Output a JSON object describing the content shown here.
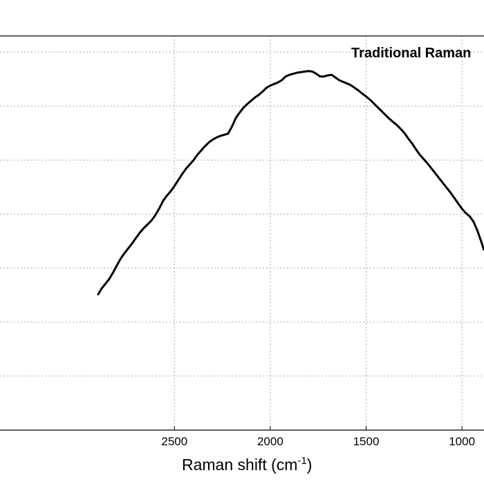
{
  "chart_data": {
    "type": "line",
    "title": "Traditional Raman",
    "xlabel": "Raman shift (cm",
    "xlabel_superscript": "-1",
    "xlabel_suffix": ")",
    "ylabel": "",
    "x_reversed": true,
    "xlim": [
      3410,
      885
    ],
    "ylim": [
      0,
      7.3
    ],
    "grid": true,
    "x_ticks": [
      2500,
      2000,
      1500,
      1000
    ],
    "x_tick_labels": [
      "2500",
      "2000",
      "1500",
      "1000"
    ],
    "y_grid_values": [
      1,
      2,
      3,
      4,
      5,
      6,
      7
    ],
    "series": [
      {
        "color": "#000000",
        "x": [
          2900,
          2880,
          2860,
          2840,
          2820,
          2800,
          2780,
          2760,
          2740,
          2720,
          2700,
          2680,
          2660,
          2640,
          2620,
          2600,
          2580,
          2560,
          2540,
          2520,
          2500,
          2480,
          2460,
          2440,
          2420,
          2400,
          2380,
          2360,
          2340,
          2320,
          2300,
          2280,
          2260,
          2240,
          2220,
          2200,
          2180,
          2160,
          2140,
          2120,
          2100,
          2080,
          2060,
          2040,
          2020,
          2000,
          1980,
          1960,
          1940,
          1920,
          1900,
          1880,
          1860,
          1840,
          1820,
          1800,
          1780,
          1760,
          1740,
          1720,
          1700,
          1680,
          1660,
          1640,
          1620,
          1600,
          1580,
          1560,
          1540,
          1520,
          1500,
          1480,
          1460,
          1440,
          1420,
          1400,
          1380,
          1360,
          1340,
          1320,
          1300,
          1280,
          1260,
          1240,
          1220,
          1200,
          1180,
          1160,
          1140,
          1120,
          1100,
          1080,
          1060,
          1040,
          1020,
          1000,
          980,
          960,
          940,
          920,
          900,
          885
        ],
        "y": [
          2.5,
          2.62,
          2.71,
          2.8,
          2.92,
          3.05,
          3.18,
          3.28,
          3.37,
          3.46,
          3.56,
          3.66,
          3.74,
          3.81,
          3.88,
          3.98,
          4.1,
          4.24,
          4.34,
          4.42,
          4.52,
          4.63,
          4.74,
          4.84,
          4.92,
          5.0,
          5.1,
          5.18,
          5.26,
          5.33,
          5.38,
          5.42,
          5.45,
          5.47,
          5.49,
          5.62,
          5.78,
          5.88,
          5.97,
          6.04,
          6.1,
          6.16,
          6.21,
          6.27,
          6.34,
          6.38,
          6.41,
          6.44,
          6.48,
          6.55,
          6.58,
          6.6,
          6.62,
          6.63,
          6.64,
          6.65,
          6.64,
          6.6,
          6.55,
          6.55,
          6.57,
          6.58,
          6.53,
          6.48,
          6.45,
          6.42,
          6.39,
          6.34,
          6.29,
          6.23,
          6.18,
          6.12,
          6.05,
          5.98,
          5.91,
          5.84,
          5.77,
          5.71,
          5.65,
          5.58,
          5.5,
          5.4,
          5.31,
          5.2,
          5.1,
          5.02,
          4.94,
          4.85,
          4.76,
          4.67,
          4.58,
          4.49,
          4.4,
          4.3,
          4.2,
          4.1,
          4.02,
          3.96,
          3.86,
          3.7,
          3.5,
          3.33
        ]
      }
    ]
  }
}
